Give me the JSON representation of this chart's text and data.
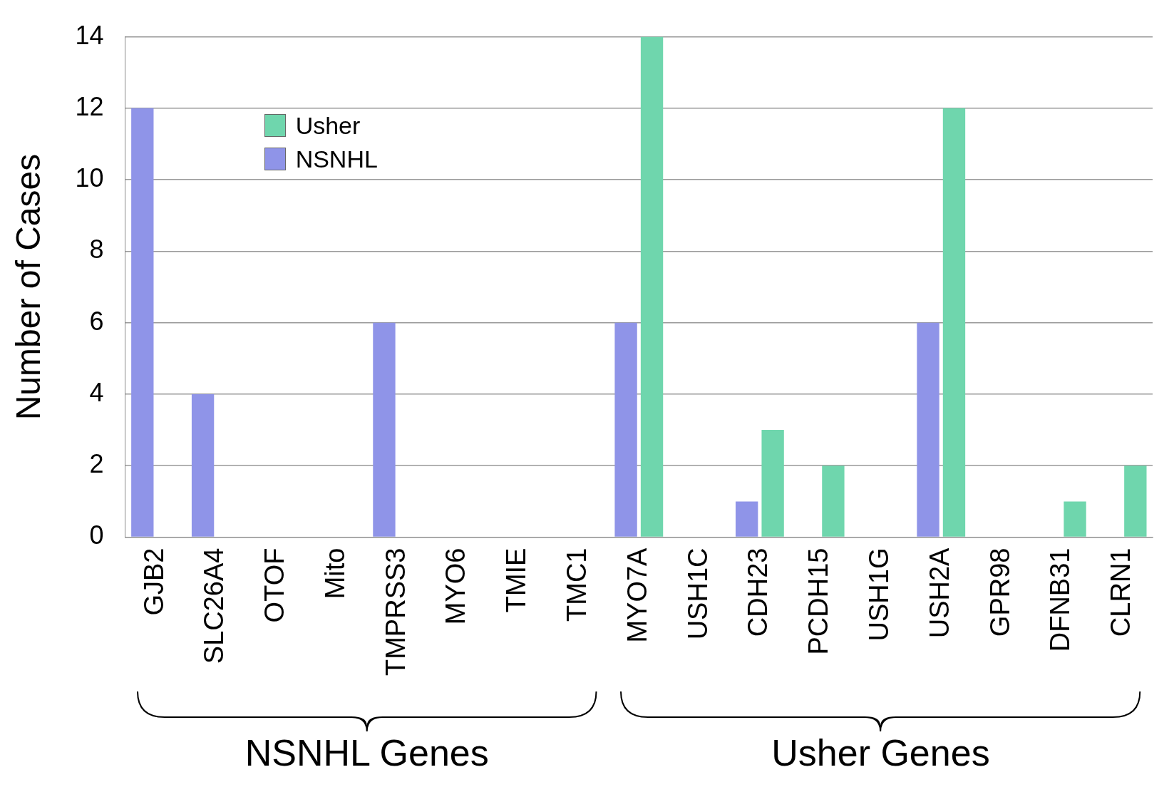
{
  "chart_data": {
    "type": "bar",
    "ylabel": "Number of Cases",
    "categories": [
      "GJB2",
      "SLC26A4",
      "OTOF",
      "Mito",
      "TMPRSS3",
      "MYO6",
      "TMIE",
      "TMC1",
      "MYO7A",
      "USH1C",
      "CDH23",
      "PCDH15",
      "USH1G",
      "USH2A",
      "GPR98",
      "DFNB31",
      "CLRN1"
    ],
    "series": [
      {
        "name": "NSNHL",
        "color": "#8f94e8",
        "values": [
          12,
          4,
          0,
          0,
          6,
          0,
          0,
          0,
          6,
          0,
          1,
          0,
          0,
          6,
          0,
          0,
          0
        ]
      },
      {
        "name": "Usher",
        "color": "#6fd6ad",
        "values": [
          0,
          0,
          0,
          0,
          0,
          0,
          0,
          0,
          14,
          0,
          3,
          2,
          0,
          12,
          0,
          1,
          2
        ]
      }
    ],
    "ylim": [
      0,
      14
    ],
    "yticks": [
      0,
      2,
      4,
      6,
      8,
      10,
      12,
      14
    ],
    "grid": "y",
    "legend": "top left",
    "annotations": [
      "NSNHL Genes",
      "Usher Genes"
    ]
  }
}
